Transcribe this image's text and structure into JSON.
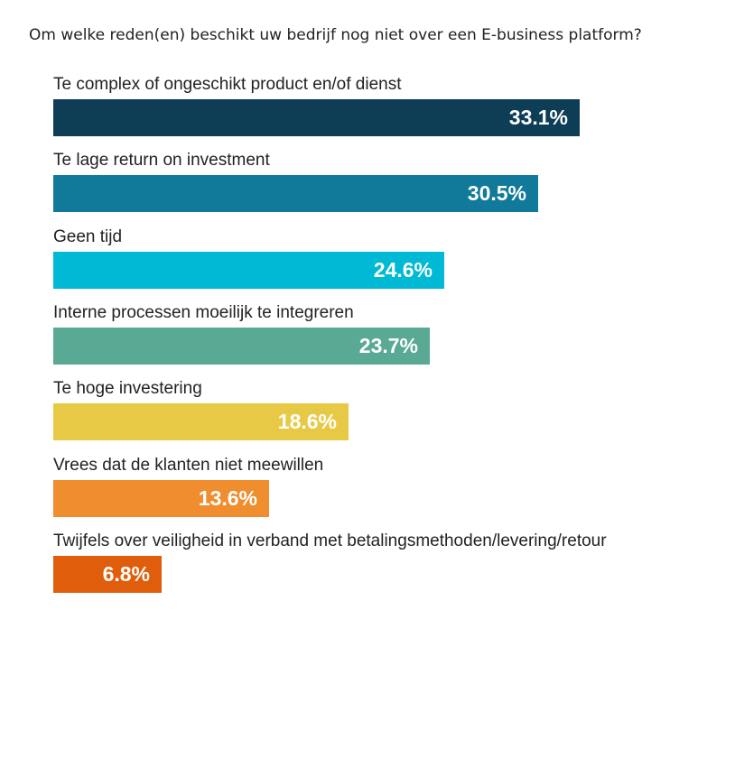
{
  "chart_data": {
    "type": "bar",
    "orientation": "horizontal",
    "title": "Om welke reden(en) beschikt uw bedrijf nog niet over een E-business platform?",
    "categories": [
      "Te complex of ongeschikt product en/of dienst",
      "Te lage return on investment",
      "Geen tijd",
      "Interne processen moeilijk te integreren",
      "Te hoge investering",
      "Vrees dat de klanten niet meewillen",
      "Twijfels over veiligheid in verband met betalingsmethoden/levering/retour"
    ],
    "values": [
      33.1,
      30.5,
      24.6,
      23.7,
      18.6,
      13.6,
      6.8
    ],
    "value_labels": [
      "33.1%",
      "30.5%",
      "24.6%",
      "23.7%",
      "18.6%",
      "13.6%",
      "6.8%"
    ],
    "colors": [
      "#0e3d56",
      "#117a9b",
      "#00b9d4",
      "#5aa994",
      "#e8c946",
      "#ef8d2f",
      "#e05e0b"
    ],
    "unit": "%",
    "grid": false,
    "legend": "none"
  }
}
